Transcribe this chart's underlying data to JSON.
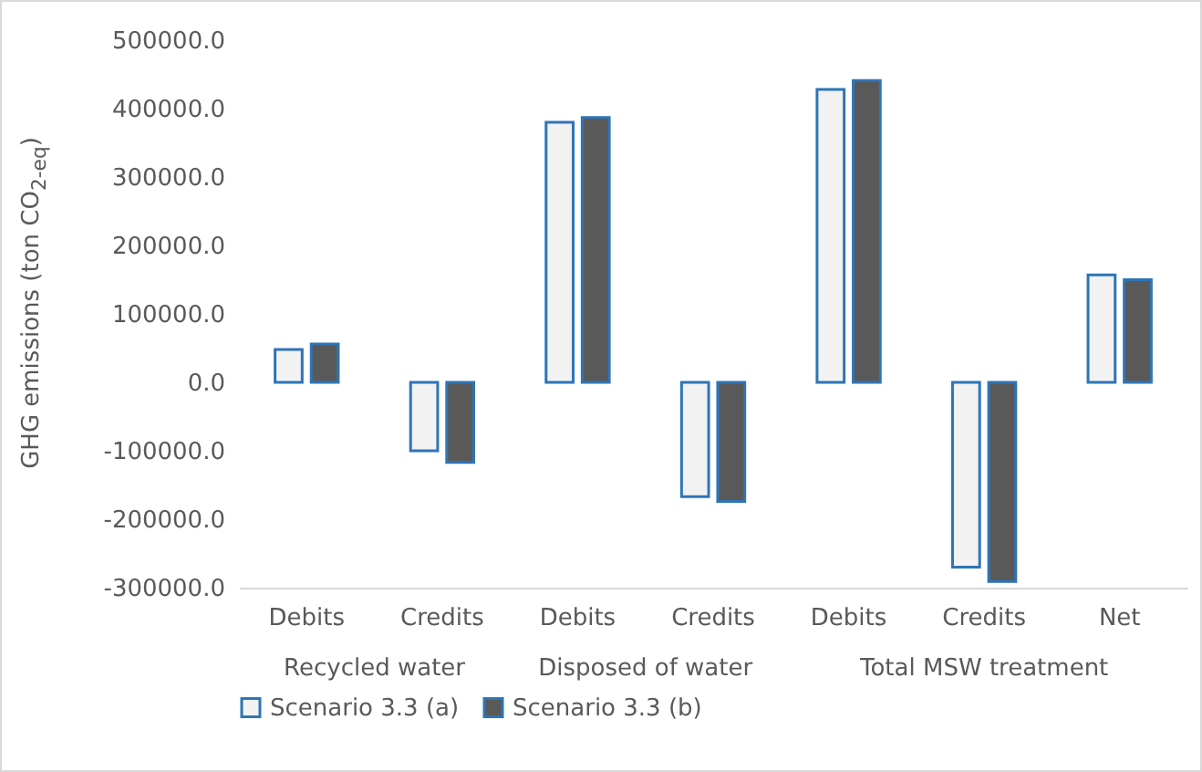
{
  "chart_data": {
    "type": "bar",
    "ylabel": "GHG emissions (ton CO$_{2-eq}$)",
    "categories": [
      "Debits",
      "Credits",
      "Debits",
      "Credits",
      "Debits",
      "Credits",
      "Net"
    ],
    "series": [
      {
        "name": "Scenario 3.3 (a)",
        "color": "#f2f2f2",
        "values": [
          48000,
          -100000,
          380000,
          -167000,
          428000,
          -270000,
          157000
        ]
      },
      {
        "name": "Scenario 3.3 (b)",
        "color": "#595959",
        "values": [
          56000,
          -117000,
          387000,
          -174000,
          441000,
          -291000,
          150000
        ]
      }
    ],
    "annotations": [
      "Recycled water",
      "Disposed of water",
      "Total MSW treatment"
    ],
    "ylim": [
      -300000,
      500000
    ],
    "yticks": [
      {
        "value": -300000,
        "label": "-300000.0"
      },
      {
        "value": -200000,
        "label": "-200000.0"
      },
      {
        "value": -100000,
        "label": "-100000.0"
      },
      {
        "value": 0,
        "label": "0.0"
      },
      {
        "value": 100000,
        "label": "100000.0"
      },
      {
        "value": 200000,
        "label": "200000.0"
      },
      {
        "value": 300000,
        "label": "300000.0"
      },
      {
        "value": 400000,
        "label": "400000.0"
      },
      {
        "value": 500000,
        "label": "500000.0"
      }
    ],
    "grid": false,
    "legend": "bottom"
  }
}
